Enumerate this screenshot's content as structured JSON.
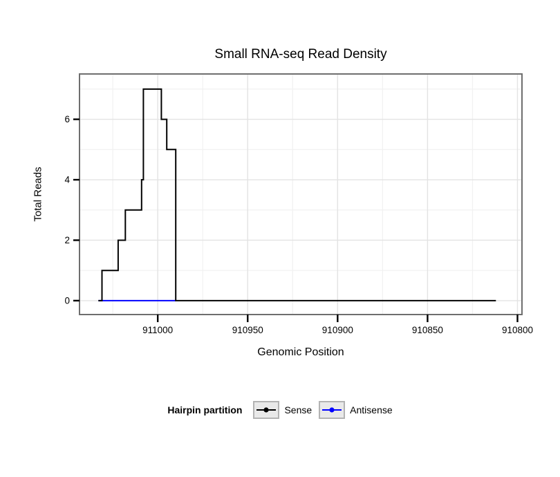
{
  "chart_data": {
    "type": "line",
    "subtype": "step-coverage",
    "title": "Small RNA-seq Read Density",
    "xlabel": "Genomic Position",
    "ylabel": "Total Reads",
    "x_reversed": true,
    "xlim": [
      911043.5,
      910797.5
    ],
    "ylim": [
      -0.46,
      7.5
    ],
    "x_major_ticks": [
      911000,
      910950,
      910900,
      910850,
      910800
    ],
    "x_minor_ticks": [
      911025,
      910975,
      910925,
      910875,
      910825
    ],
    "y_major_ticks": [
      0,
      2,
      4,
      6
    ],
    "y_minor_ticks": [
      1,
      3,
      5,
      7
    ],
    "grid": true,
    "legend_position": "bottom",
    "series": [
      {
        "name": "Antisense",
        "color": "#0000ff",
        "segments": [
          [
            911033,
            910990,
            0
          ]
        ]
      },
      {
        "name": "Sense",
        "color": "#000000",
        "segments": [
          [
            911033,
            911031,
            0
          ],
          [
            911031,
            911022,
            1
          ],
          [
            911022,
            911018,
            2
          ],
          [
            911018,
            911009,
            3
          ],
          [
            911009,
            911008,
            4
          ],
          [
            911008,
            910998,
            7
          ],
          [
            910998,
            910995,
            6
          ],
          [
            910995,
            910990,
            5
          ],
          [
            910990,
            910812,
            0
          ]
        ]
      }
    ]
  },
  "legend": {
    "title": "Hairpin partition",
    "items": [
      {
        "label": "Sense",
        "color": "#000000"
      },
      {
        "label": "Antisense",
        "color": "#0000ff"
      }
    ]
  },
  "colors": {
    "panel_border": "#6e6e6e",
    "grid_major": "#e3e3e3",
    "grid_minor": "#f1f1f1",
    "tick": "#000000",
    "legend_key_bg": "#e9e9e9",
    "legend_key_border": "#b3b3b3"
  }
}
